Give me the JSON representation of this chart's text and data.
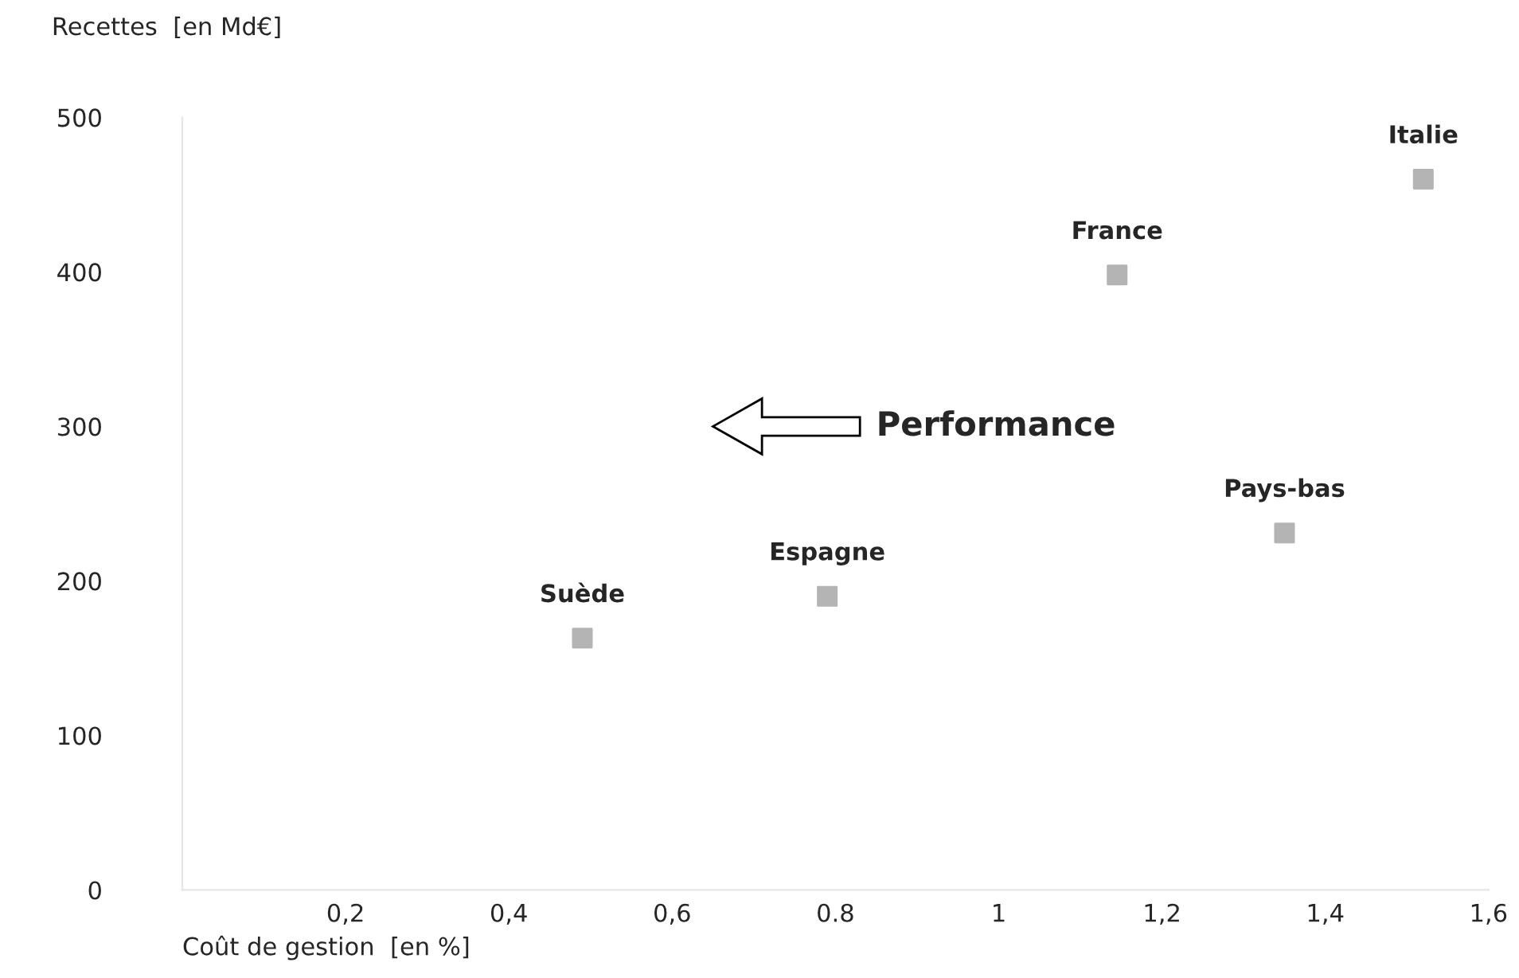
{
  "chart_data": {
    "type": "scatter",
    "xlabel": "Coût de gestion  [en %]",
    "ylabel": "Recettes  [en Md€]",
    "series": [
      {
        "name": "Suède",
        "color": "#b4b4b4",
        "x": [
          0.49
        ],
        "values": [
          163
        ]
      },
      {
        "name": "Espagne",
        "color": "#b4b4b4",
        "x": [
          0.79
        ],
        "values": [
          190
        ]
      },
      {
        "name": "France",
        "color": "#b4b4b4",
        "x": [
          1.145
        ],
        "values": [
          398
        ]
      },
      {
        "name": "Pays-bas",
        "color": "#b4b4b4",
        "x": [
          1.35
        ],
        "values": [
          231
        ]
      },
      {
        "name": "Italie",
        "color": "#b4b4b4",
        "x": [
          1.52
        ],
        "values": [
          460
        ]
      }
    ],
    "marker": "square",
    "grid": false,
    "legend": false,
    "xlim": [
      0,
      1.6
    ],
    "ylim": [
      0,
      500
    ],
    "xticks": [
      {
        "value": 0.2,
        "label": "0,2"
      },
      {
        "value": 0.4,
        "label": "0,4"
      },
      {
        "value": 0.6,
        "label": "0,6"
      },
      {
        "value": 0.8,
        "label": "0.8"
      },
      1,
      {
        "value": 1.2,
        "label": "1,2"
      },
      {
        "value": 1.4,
        "label": "1,4"
      },
      {
        "value": 1.6,
        "label": "1,6"
      }
    ],
    "yticks": [
      0,
      100,
      200,
      300,
      400,
      500
    ],
    "annotations": [
      "Performance"
    ]
  }
}
